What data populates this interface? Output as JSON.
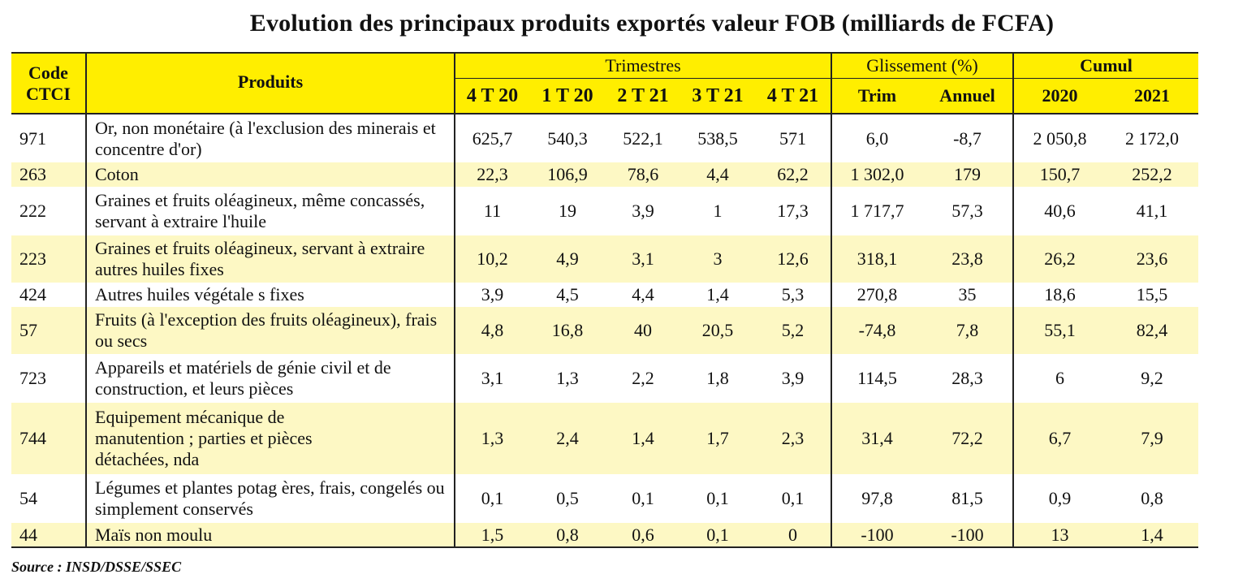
{
  "title": "Evolution des principaux produits exportés valeur FOB (milliards de FCFA)",
  "header": {
    "code_line1": "Code",
    "code_line2": "CTCI",
    "produits": "Produits",
    "trimestres": "Trimestres",
    "glissement": "Glissement (%)",
    "cumul": "Cumul",
    "quarters": [
      "4 T 20",
      "1 T 20",
      "2 T 21",
      "3 T 21",
      "4 T 21"
    ],
    "glissement_cols": [
      "Trim",
      "Annuel"
    ],
    "cumul_cols": [
      "2020",
      "2021"
    ]
  },
  "rows": [
    {
      "code": "971",
      "product": "Or, non monétaire (à l'exclusion des minerais et concentre d'or)",
      "q": [
        "625,7",
        "540,3",
        "522,1",
        "538,5",
        "571"
      ],
      "g": [
        "6,0",
        "-8,7"
      ],
      "c": [
        "2 050,8",
        "2 172,0"
      ]
    },
    {
      "code": "263",
      "product": "Coton",
      "q": [
        "22,3",
        "106,9",
        "78,6",
        "4,4",
        "62,2"
      ],
      "g": [
        "1 302,0",
        "179"
      ],
      "c": [
        "150,7",
        "252,2"
      ]
    },
    {
      "code": "222",
      "product": "Graines et fruits oléagineux, même concassés, servant à extraire l'huile",
      "q": [
        "11",
        "19",
        "3,9",
        "1",
        "17,3"
      ],
      "g": [
        "1 717,7",
        "57,3"
      ],
      "c": [
        "40,6",
        "41,1"
      ]
    },
    {
      "code": "223",
      "product": "Graines et fruits oléagineux, servant à extraire autres huiles fixes",
      "q": [
        "10,2",
        "4,9",
        "3,1",
        "3",
        "12,6"
      ],
      "g": [
        "318,1",
        "23,8"
      ],
      "c": [
        "26,2",
        "23,6"
      ]
    },
    {
      "code": "424",
      "product": "Autres huiles végétale s fixes",
      "q": [
        "3,9",
        "4,5",
        "4,4",
        "1,4",
        "5,3"
      ],
      "g": [
        "270,8",
        "35"
      ],
      "c": [
        "18,6",
        "15,5"
      ]
    },
    {
      "code": "57",
      "product": "Fruits (à l'exception des fruits oléagineux), frais ou secs",
      "q": [
        "4,8",
        "16,8",
        "40",
        "20,5",
        "5,2"
      ],
      "g": [
        "-74,8",
        "7,8"
      ],
      "c": [
        "55,1",
        "82,4"
      ]
    },
    {
      "code": "723",
      "product": "Appareils et matériels de génie civil et de construction, et leurs pièces",
      "q": [
        "3,1",
        "1,3",
        "2,2",
        "1,8",
        "3,9"
      ],
      "g": [
        "114,5",
        "28,3"
      ],
      "c": [
        "6",
        "9,2"
      ]
    },
    {
      "code": "744",
      "product": "Equipement mécanique de manutention ; parties et pièces détachées, nda",
      "q": [
        "1,3",
        "2,4",
        "1,4",
        "1,7",
        "2,3"
      ],
      "g": [
        "31,4",
        "72,2"
      ],
      "c": [
        "6,7",
        "7,9"
      ]
    },
    {
      "code": "54",
      "product": "Légumes et plantes potag ères, frais, congelés ou simplement conservés",
      "q": [
        "0,1",
        "0,5",
        "0,1",
        "0,1",
        "0,1"
      ],
      "g": [
        "97,8",
        "81,5"
      ],
      "c": [
        "0,9",
        "0,8"
      ]
    },
    {
      "code": "44",
      "product": "Maïs non moulu",
      "q": [
        "1,5",
        "0,8",
        "0,6",
        "0,1",
        "0"
      ],
      "g": [
        "-100",
        "-100"
      ],
      "c": [
        "13",
        "1,4"
      ]
    }
  ],
  "source": "Source : INSD/DSSE/SSEC",
  "colors": {
    "header_bg": "#ffee00",
    "alt_row_bg": "#fdf8c4"
  }
}
